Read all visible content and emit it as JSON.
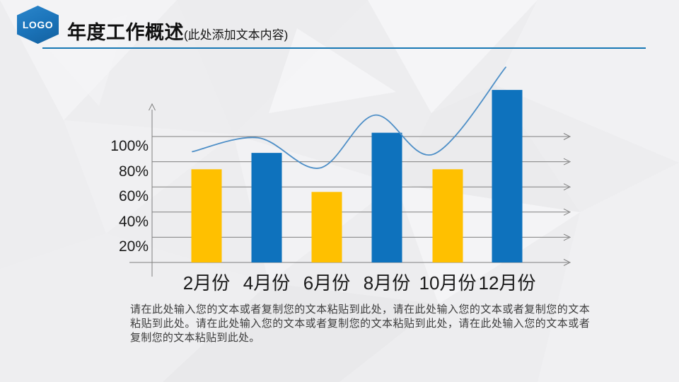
{
  "slide": {
    "logo_text": "LOGO",
    "title": "年度工作概述",
    "title_suffix": "(此处添加文本内容)",
    "body_text": "请在此处输入您的文本或者复制您的文本粘贴到此处，请在此处输入您的文本或者复制您的文本粘贴到此处。请在此处输入您的文本或者复制您的文本粘贴到此处，请在此处输入您的文本或者复制您的文本粘贴到此处。"
  },
  "colors": {
    "bar_yellow": "#FFC000",
    "bar_blue": "#0E72BD",
    "curve_blue": "#4E8FC7",
    "axis_gray": "#808080",
    "header_line_blue": "#1878B4",
    "hexagon_blue": "#1B74BA",
    "label_black": "#1A1A1A"
  },
  "chart_data": {
    "type": "bar",
    "title": "",
    "xlabel": "",
    "ylabel": "",
    "categories": [
      "2月份",
      "4月份",
      "6月份",
      "8月份",
      "10月份",
      "12月份"
    ],
    "series": [
      {
        "name": "monthly-bars",
        "type": "bar",
        "values": [
          74,
          87,
          56,
          103,
          74,
          137
        ],
        "colors": [
          "#FFC000",
          "#0E72BD",
          "#FFC000",
          "#0E72BD",
          "#FFC000",
          "#0E72BD"
        ]
      },
      {
        "name": "trend-line",
        "type": "line",
        "values": [
          88,
          99,
          75,
          117,
          86,
          155
        ],
        "color": "#4E8FC7"
      }
    ],
    "y_ticks": [
      "100%",
      "80%",
      "60%",
      "40%",
      "20%"
    ],
    "y_tick_values": [
      100,
      80,
      60,
      40,
      20
    ],
    "ylim": [
      0,
      160
    ],
    "grid": true,
    "legend": false,
    "grid_arrows": true
  }
}
